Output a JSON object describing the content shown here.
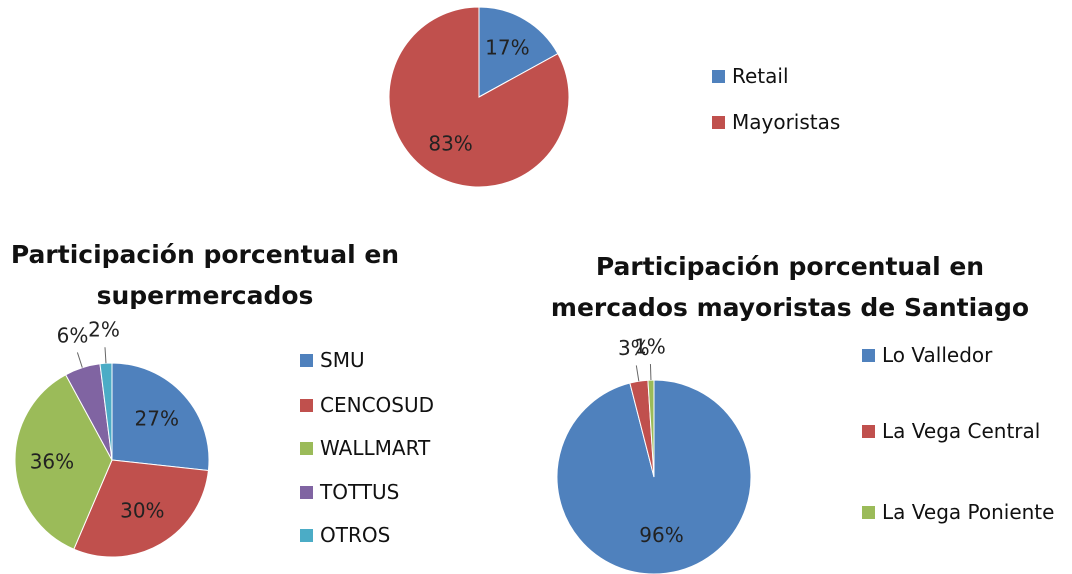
{
  "chart_data": [
    {
      "type": "pie",
      "categories": [
        "Retail",
        "Mayoristas"
      ],
      "values": [
        17,
        83
      ],
      "value_labels": [
        "17%",
        "83%"
      ],
      "colors": [
        "#4f81bd",
        "#c0504d"
      ]
    },
    {
      "type": "pie",
      "title": "Participación porcentual en supermercados",
      "categories": [
        "SMU",
        "CENCOSUD",
        "WALLMART",
        "TOTTUS",
        "OTROS"
      ],
      "values": [
        27,
        30,
        36,
        6,
        2
      ],
      "value_labels": [
        "27%",
        "30%",
        "36%",
        "6%",
        "2%"
      ],
      "colors": [
        "#4f81bd",
        "#c0504d",
        "#9bbb59",
        "#8064a2",
        "#4bacc6"
      ]
    },
    {
      "type": "pie",
      "title": "Participación porcentual en mercados mayoristas de Santiago",
      "categories": [
        "Lo Valledor",
        "La Vega Central",
        "La Vega Poniente"
      ],
      "values": [
        96,
        3,
        1
      ],
      "value_labels": [
        "96%",
        "3%",
        "1%"
      ],
      "colors": [
        "#4f81bd",
        "#c0504d",
        "#9bbb59"
      ]
    }
  ]
}
